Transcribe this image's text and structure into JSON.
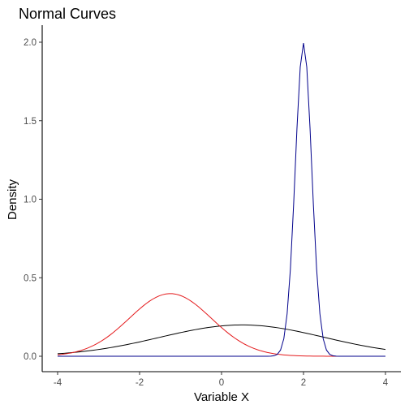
{
  "chart_data": {
    "type": "line",
    "title": "Normal Curves",
    "xlabel": "Variable X",
    "ylabel": "Density",
    "xlim": [
      -4,
      4
    ],
    "ylim": [
      0,
      2
    ],
    "x_ticks": [
      -4,
      -2,
      0,
      2,
      4
    ],
    "x_tick_labels": [
      "-4",
      "-2",
      "0",
      "2",
      "4"
    ],
    "y_ticks": [
      0,
      0.5,
      1,
      1.5,
      2
    ],
    "y_tick_labels": [
      "0.0",
      "0.5",
      "1.0",
      "1.5",
      "2.0"
    ],
    "grid": false,
    "legend": "none",
    "series": [
      {
        "mean": 0.5,
        "sd": 2.0,
        "color": "#000000",
        "x_range": [
          -4,
          4
        ]
      },
      {
        "mean": -1.25,
        "sd": 1.0,
        "color": "#e41a1c",
        "x_range": [
          -4,
          4
        ]
      },
      {
        "mean": 2.0,
        "sd": 0.2,
        "color": "#00008b",
        "x_range": [
          -4,
          4
        ]
      }
    ]
  }
}
